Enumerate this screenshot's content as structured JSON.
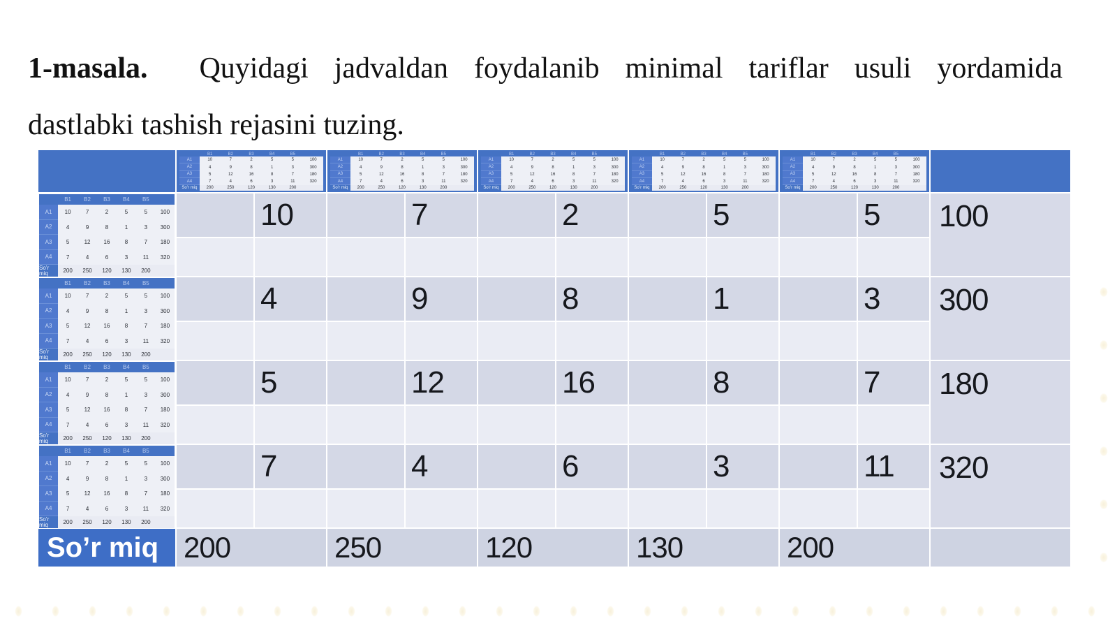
{
  "title": {
    "label": "1-masala.",
    "line1": "Quyidagi jadvaldan foydalanib minimal tariflar usuli yordamida",
    "line2": "dastlabki tashish rejasini tuzing."
  },
  "colors": {
    "header_blue": "#4472c4",
    "cost_cell": "#d4d8e6",
    "empty_cell": "#eaecf4",
    "supply_cell": "#d7dae8",
    "demand_cell": "#ced3e2"
  },
  "table": {
    "rows": [
      {
        "costs": [
          10,
          7,
          2,
          5,
          5
        ],
        "supply": "100"
      },
      {
        "costs": [
          4,
          9,
          8,
          1,
          3
        ],
        "supply": "300"
      },
      {
        "costs": [
          5,
          12,
          16,
          8,
          7
        ],
        "supply": "180"
      },
      {
        "costs": [
          7,
          4,
          6,
          3,
          11
        ],
        "supply": "320"
      }
    ],
    "demand_label": "So’r miq",
    "demands": [
      "200",
      "250",
      "120",
      "130",
      "200"
    ]
  },
  "mini_table": {
    "col_labels": [
      "B1",
      "B2",
      "B3",
      "B4",
      "B5"
    ],
    "row_labels": [
      "A1",
      "A2",
      "A3",
      "A4"
    ],
    "rows": [
      [
        10,
        7,
        2,
        5,
        5,
        100
      ],
      [
        4,
        9,
        8,
        1,
        3,
        300
      ],
      [
        5,
        12,
        16,
        8,
        7,
        180
      ],
      [
        7,
        4,
        6,
        3,
        11,
        320
      ]
    ],
    "footer_label": "So’r miq",
    "footer_values": [
      200,
      250,
      120,
      130,
      200
    ]
  }
}
